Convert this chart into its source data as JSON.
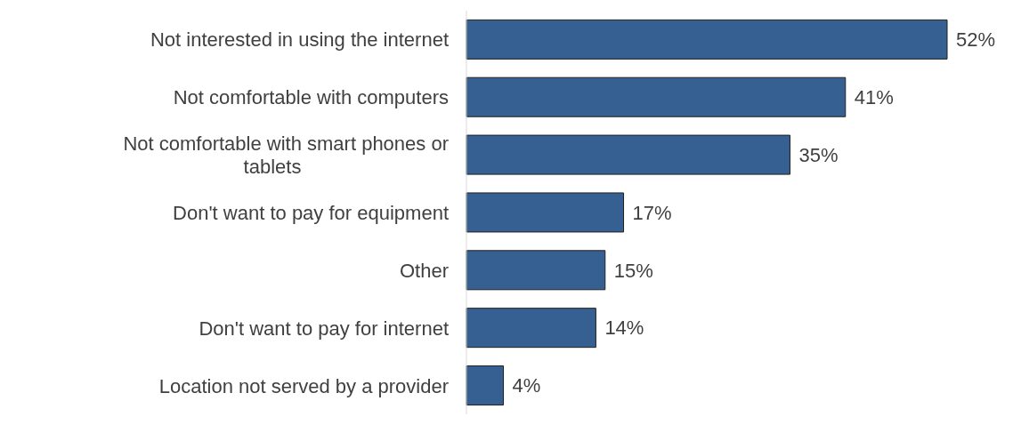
{
  "chart_data": {
    "type": "bar",
    "orientation": "horizontal",
    "categories": [
      "Not interested in using the internet",
      "Not comfortable with computers",
      "Not comfortable with smart phones or tablets",
      "Don't want to pay for equipment",
      "Other",
      "Don't want to pay for internet",
      "Location not served by a provider"
    ],
    "values": [
      52,
      41,
      35,
      17,
      15,
      14,
      4
    ],
    "value_labels": [
      "52%",
      "41%",
      "35%",
      "17%",
      "15%",
      "14%",
      "4%"
    ],
    "color": "#376092"
  }
}
